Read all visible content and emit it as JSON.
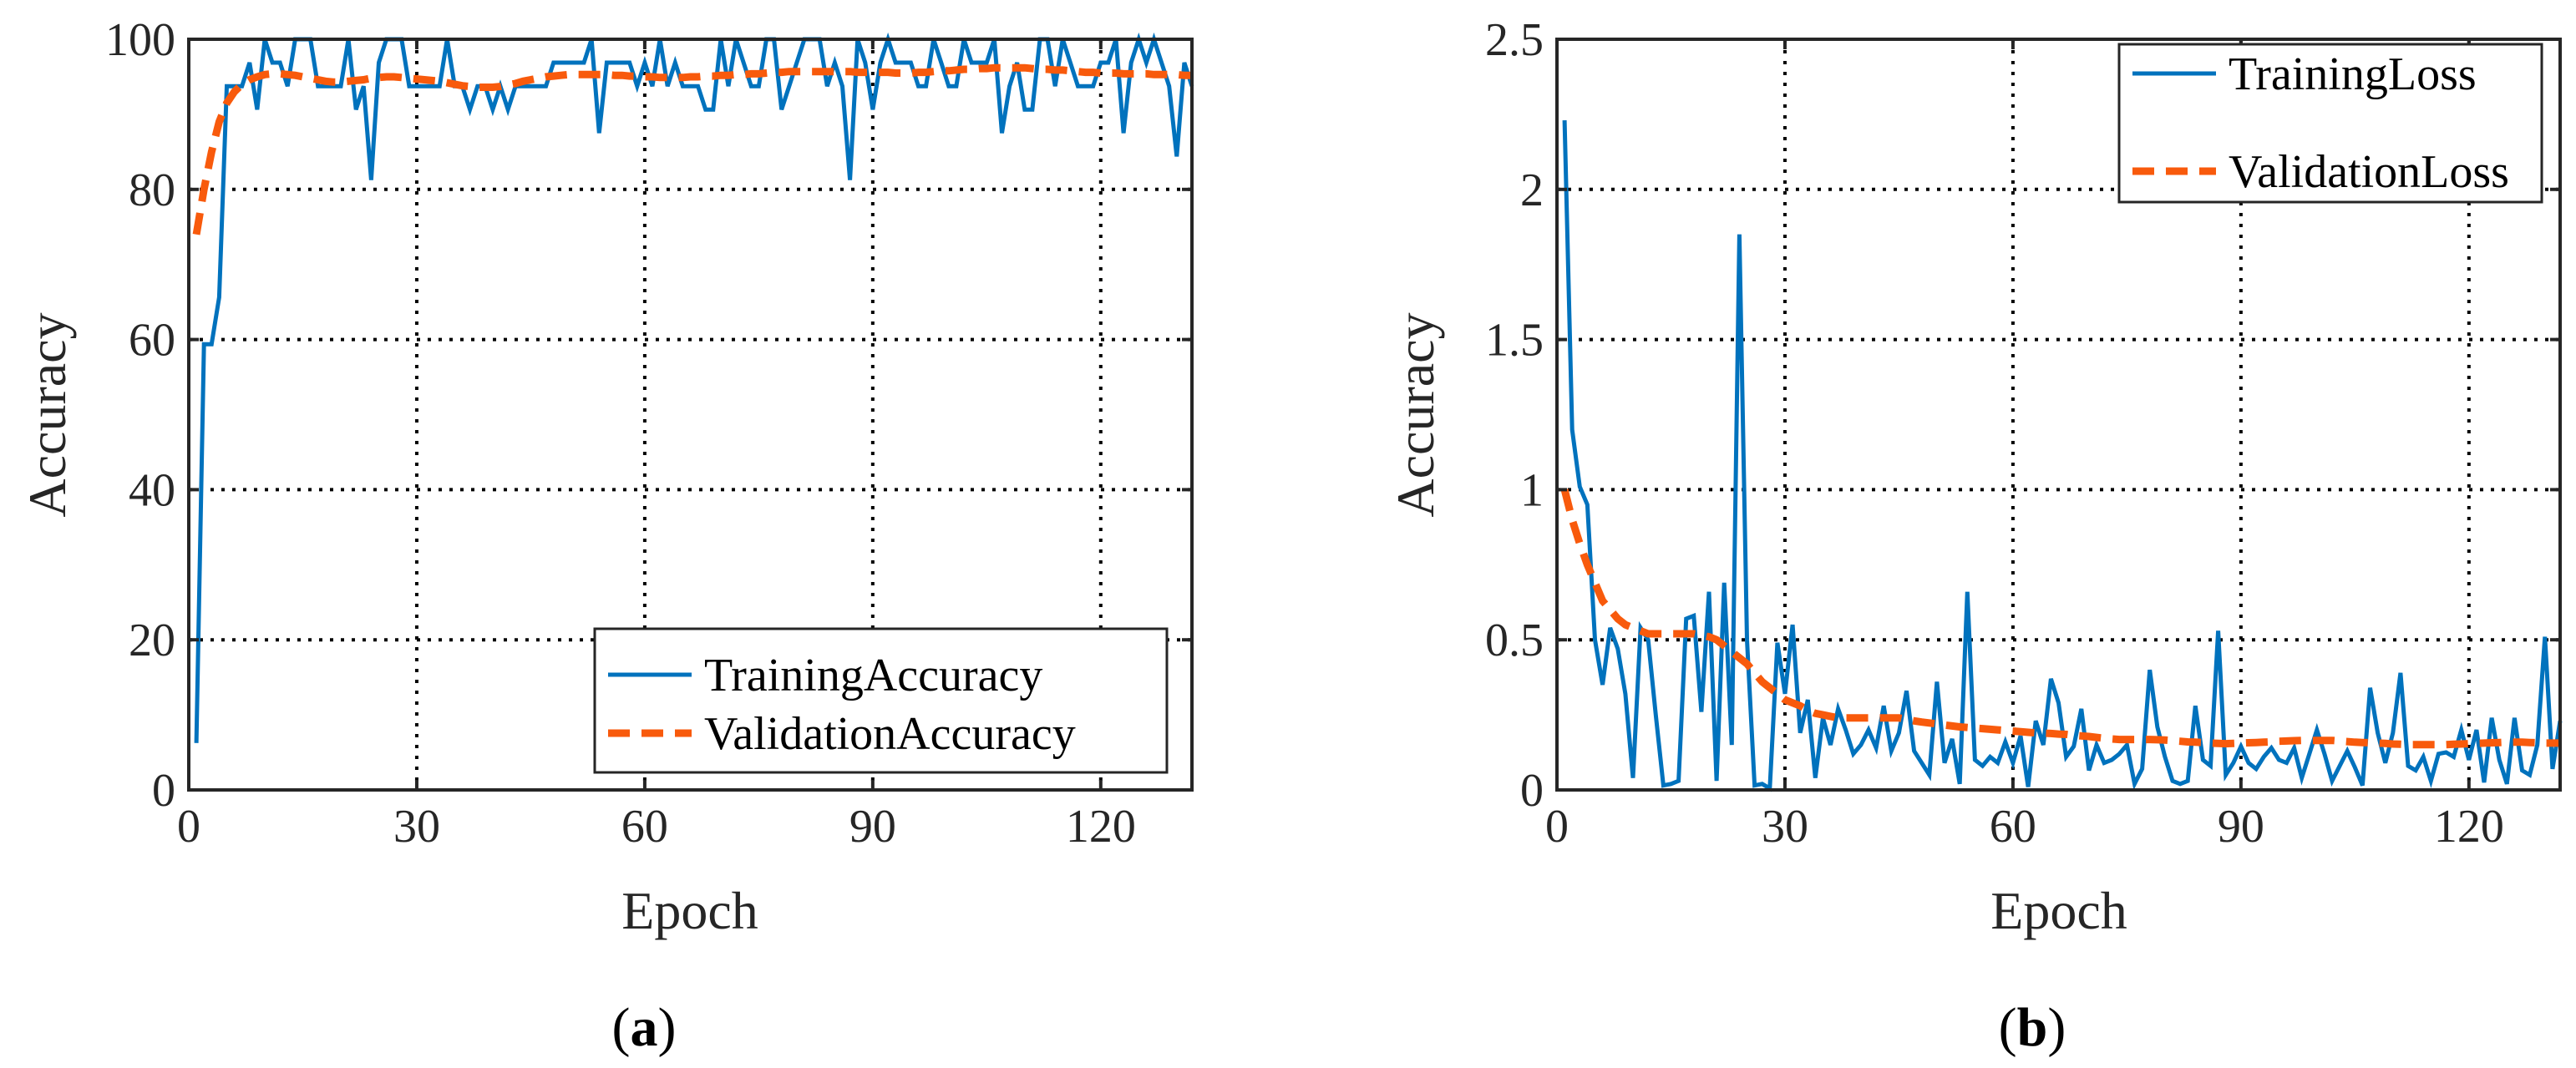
{
  "colors": {
    "training": "#0072BD",
    "validation": "#F85A0C",
    "axis": "#262626",
    "grid": "#000000"
  },
  "chart_data": [
    {
      "type": "line",
      "panel_label": "a",
      "xlabel": "Epoch",
      "ylabel": "Accuracy",
      "xlim": [
        0,
        132
      ],
      "ylim": [
        0,
        100
      ],
      "xticks": [
        0,
        30,
        60,
        90,
        120
      ],
      "yticks": [
        0,
        20,
        40,
        60,
        80,
        100
      ],
      "ytick_labels": [
        "0",
        "20",
        "40",
        "60",
        "80",
        "100"
      ],
      "grid": true,
      "legend_position": "bottom-right",
      "series": [
        {
          "name": "TrainingAccuracy",
          "style": "solid",
          "color": "#0072BD",
          "values": [
            6.25,
            59.38,
            59.38,
            65.63,
            93.75,
            93.75,
            93.75,
            96.88,
            90.63,
            100,
            96.88,
            96.88,
            93.75,
            100,
            100,
            100,
            93.75,
            93.75,
            93.75,
            93.75,
            100,
            90.63,
            93.75,
            81.25,
            96.88,
            100,
            100,
            100,
            93.75,
            93.75,
            93.75,
            93.75,
            93.75,
            100,
            93.75,
            93.75,
            90.63,
            93.75,
            93.75,
            90.63,
            93.75,
            90.63,
            93.75,
            93.75,
            93.75,
            93.75,
            93.75,
            96.88,
            96.88,
            96.88,
            96.88,
            96.88,
            100,
            87.5,
            96.88,
            96.88,
            96.88,
            96.88,
            93.75,
            96.88,
            93.75,
            100,
            93.75,
            96.88,
            93.75,
            93.75,
            93.75,
            90.63,
            90.63,
            100,
            93.75,
            100,
            96.88,
            93.75,
            93.75,
            100,
            100,
            90.63,
            93.75,
            96.88,
            100,
            100,
            100,
            93.75,
            96.88,
            93.75,
            81.25,
            100,
            96.88,
            90.63,
            96.88,
            100,
            96.88,
            96.88,
            96.88,
            93.75,
            93.75,
            100,
            96.88,
            93.75,
            93.75,
            100,
            96.88,
            96.88,
            96.88,
            100,
            87.5,
            93.75,
            96.88,
            90.63,
            90.63,
            100,
            100,
            93.75,
            100,
            96.88,
            93.75,
            93.75,
            93.75,
            96.88,
            96.88,
            100,
            87.5,
            96.88,
            100,
            96.88,
            100,
            96.88,
            93.75,
            84.38,
            96.88,
            93.75
          ]
        },
        {
          "name": "ValidationAccuracy",
          "style": "dashed",
          "color": "#F85A0C",
          "values": [
            74,
            80,
            85,
            89,
            91.5,
            93,
            94,
            94.6,
            95,
            95.3,
            95.4,
            95.4,
            95.3,
            95.2,
            95.0,
            94.8,
            94.6,
            94.4,
            94.3,
            94.3,
            94.4,
            94.5,
            94.6,
            94.8,
            94.9,
            95.0,
            95.0,
            94.9,
            94.8,
            94.7,
            94.6,
            94.5,
            94.4,
            94.2,
            94.0,
            93.8,
            93.7,
            93.6,
            93.6,
            93.6,
            93.7,
            93.9,
            94.1,
            94.4,
            94.6,
            94.8,
            95.0,
            95.1,
            95.2,
            95.3,
            95.3,
            95.3,
            95.3,
            95.3,
            95.3,
            95.2,
            95.2,
            95.1,
            95.1,
            95.0,
            95.0,
            94.9,
            94.9,
            94.9,
            94.9,
            95.0,
            95.0,
            95.1,
            95.1,
            95.2,
            95.2,
            95.3,
            95.3,
            95.4,
            95.4,
            95.5,
            95.6,
            95.6,
            95.7,
            95.7,
            95.7,
            95.7,
            95.7,
            95.7,
            95.7,
            95.7,
            95.7,
            95.6,
            95.6,
            95.6,
            95.6,
            95.6,
            95.5,
            95.5,
            95.5,
            95.6,
            95.6,
            95.7,
            95.8,
            95.8,
            95.9,
            96.0,
            96.0,
            96.1,
            96.1,
            96.2,
            96.2,
            96.2,
            96.2,
            96.2,
            96.1,
            96.0,
            96.0,
            95.9,
            95.9,
            95.8,
            95.7,
            95.6,
            95.6,
            95.5,
            95.5,
            95.5,
            95.4,
            95.4,
            95.4,
            95.4,
            95.3,
            95.3,
            95.3,
            95.3,
            95.2,
            95.2
          ]
        }
      ]
    },
    {
      "type": "line",
      "panel_label": "b",
      "xlabel": "Epoch",
      "ylabel": "Accuracy",
      "xlim": [
        0,
        132
      ],
      "ylim": [
        0,
        2.5
      ],
      "xticks": [
        0,
        30,
        60,
        90,
        120
      ],
      "yticks": [
        0,
        0.5,
        1,
        1.5,
        2,
        2.5
      ],
      "ytick_labels": [
        "0",
        "0.5",
        "1",
        "1.5",
        "2",
        "2.5"
      ],
      "grid": true,
      "legend_position": "top-right",
      "series": [
        {
          "name": "TrainingLoss",
          "style": "solid",
          "color": "#0072BD",
          "values": [
            2.23,
            1.2,
            1.01,
            0.95,
            0.5,
            0.35,
            0.54,
            0.47,
            0.32,
            0.04,
            0.54,
            0.5,
            0.25,
            0.015,
            0.02,
            0.03,
            0.57,
            0.58,
            0.26,
            0.66,
            0.03,
            0.69,
            0.15,
            1.85,
            0.5,
            0.015,
            0.02,
            0.005,
            0.49,
            0.32,
            0.55,
            0.19,
            0.3,
            0.04,
            0.24,
            0.15,
            0.27,
            0.2,
            0.12,
            0.15,
            0.2,
            0.14,
            0.28,
            0.13,
            0.19,
            0.33,
            0.13,
            0.09,
            0.05,
            0.36,
            0.09,
            0.17,
            0.02,
            0.66,
            0.1,
            0.08,
            0.11,
            0.09,
            0.16,
            0.09,
            0.18,
            0.01,
            0.23,
            0.15,
            0.37,
            0.29,
            0.11,
            0.145,
            0.27,
            0.065,
            0.15,
            0.09,
            0.1,
            0.12,
            0.15,
            0.02,
            0.07,
            0.4,
            0.21,
            0.11,
            0.03,
            0.02,
            0.03,
            0.28,
            0.1,
            0.08,
            0.53,
            0.05,
            0.09,
            0.145,
            0.09,
            0.07,
            0.11,
            0.14,
            0.1,
            0.09,
            0.14,
            0.04,
            0.12,
            0.2,
            0.12,
            0.03,
            0.08,
            0.13,
            0.075,
            0.015,
            0.34,
            0.19,
            0.09,
            0.19,
            0.39,
            0.08,
            0.065,
            0.11,
            0.03,
            0.12,
            0.125,
            0.11,
            0.2,
            0.1,
            0.2,
            0.025,
            0.24,
            0.1,
            0.02,
            0.24,
            0.065,
            0.05,
            0.15,
            0.51,
            0.07,
            0.23
          ]
        },
        {
          "name": "ValidationLoss",
          "style": "dashed",
          "color": "#F85A0C",
          "values": [
            1.0,
            0.9,
            0.82,
            0.75,
            0.69,
            0.63,
            0.6,
            0.57,
            0.55,
            0.54,
            0.53,
            0.52,
            0.52,
            0.52,
            0.52,
            0.52,
            0.52,
            0.52,
            0.515,
            0.51,
            0.5,
            0.48,
            0.46,
            0.44,
            0.42,
            0.39,
            0.36,
            0.34,
            0.32,
            0.3,
            0.29,
            0.28,
            0.265,
            0.255,
            0.25,
            0.245,
            0.24,
            0.24,
            0.24,
            0.24,
            0.24,
            0.24,
            0.24,
            0.24,
            0.24,
            0.235,
            0.23,
            0.226,
            0.223,
            0.22,
            0.216,
            0.213,
            0.21,
            0.208,
            0.206,
            0.204,
            0.202,
            0.2,
            0.198,
            0.196,
            0.194,
            0.192,
            0.19,
            0.189,
            0.188,
            0.186,
            0.185,
            0.182,
            0.18,
            0.178,
            0.175,
            0.172,
            0.17,
            0.168,
            0.168,
            0.168,
            0.168,
            0.168,
            0.167,
            0.166,
            0.164,
            0.162,
            0.16,
            0.159,
            0.158,
            0.156,
            0.155,
            0.154,
            0.155,
            0.156,
            0.157,
            0.158,
            0.159,
            0.16,
            0.162,
            0.163,
            0.164,
            0.165,
            0.165,
            0.165,
            0.165,
            0.165,
            0.163,
            0.161,
            0.159,
            0.158,
            0.157,
            0.156,
            0.155,
            0.153,
            0.152,
            0.151,
            0.151,
            0.151,
            0.151,
            0.151,
            0.151,
            0.152,
            0.153,
            0.154,
            0.155,
            0.156,
            0.157,
            0.158,
            0.159,
            0.159,
            0.159,
            0.158,
            0.157,
            0.156,
            0.156,
            0.156
          ]
        }
      ]
    }
  ]
}
